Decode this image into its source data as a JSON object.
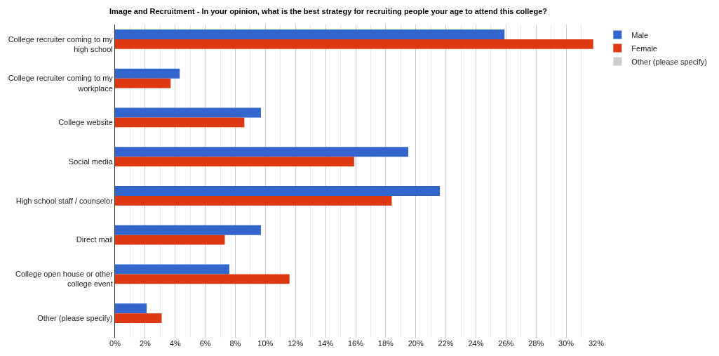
{
  "chart_data": {
    "type": "bar",
    "orientation": "horizontal",
    "title": "Image and Recruitment - In your opinion, what is the best strategy for recruiting people your age to attend this college?",
    "categories": [
      "College recruiter coming to my high school",
      "College recruiter coming to my workplace",
      "College website",
      "Social media",
      "High school staff / counselor",
      "Direct mail",
      "College open house or other college event",
      "Other (please specify)"
    ],
    "series": [
      {
        "name": "Male",
        "color": "#3366cc",
        "values": [
          25.9,
          4.3,
          9.7,
          19.5,
          21.6,
          9.7,
          7.6,
          2.1
        ]
      },
      {
        "name": "Female",
        "color": "#dc3912",
        "values": [
          31.8,
          3.7,
          8.6,
          15.9,
          18.4,
          7.3,
          11.6,
          3.1
        ]
      },
      {
        "name": "Other (please specify)",
        "color": "#cccccc",
        "values": [
          0,
          0,
          0,
          0,
          0,
          0,
          0,
          0
        ]
      }
    ],
    "xlim": [
      0,
      32
    ],
    "xticks": [
      {
        "value": 0,
        "label": "0%"
      },
      {
        "value": 2,
        "label": "2%"
      },
      {
        "value": 4,
        "label": "4%"
      },
      {
        "value": 6,
        "label": "6%"
      },
      {
        "value": 8,
        "label": "8%"
      },
      {
        "value": 10,
        "label": "10%"
      },
      {
        "value": 12,
        "label": "12%"
      },
      {
        "value": 14,
        "label": "14%"
      },
      {
        "value": 16,
        "label": "16%"
      },
      {
        "value": 18,
        "label": "18%"
      },
      {
        "value": 20,
        "label": "20%"
      },
      {
        "value": 22,
        "label": "22%"
      },
      {
        "value": 24,
        "label": "24%"
      },
      {
        "value": 26,
        "label": "26%"
      },
      {
        "value": 28,
        "label": "28%"
      },
      {
        "value": 30,
        "label": "30%"
      },
      {
        "value": 32,
        "label": "32%"
      }
    ],
    "grid": "x",
    "legend": "top right"
  }
}
